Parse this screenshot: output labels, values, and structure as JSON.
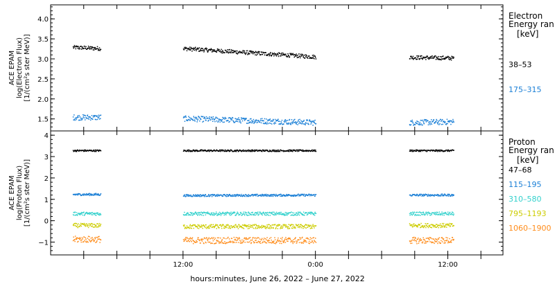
{
  "chart_data": [
    {
      "type": "scatter",
      "panel": "electron",
      "ylabel": [
        "ACE EPAM",
        "log(Electron Flux)",
        "[1/(cm²s ster MeV)]"
      ],
      "ylim": [
        1.2,
        4.35
      ],
      "yticks": [
        1.5,
        2.0,
        2.5,
        3.0,
        3.5,
        4.0
      ],
      "ytick_labels": [
        "1.5",
        "2.0",
        "2.5",
        "3.0",
        "3.5",
        "4.0"
      ],
      "legend_title": [
        "Electron",
        "Energy ran"
      ],
      "legend_unit": "[keV]",
      "series": [
        {
          "name": "38–53",
          "color": "#000000",
          "base": 3.2,
          "segments": [
            [
              2.0,
              4.5,
              3.3,
              3.27
            ],
            [
              12.0,
              24.0,
              3.27,
              3.06
            ],
            [
              32.5,
              36.5,
              3.05,
              3.03
            ]
          ],
          "noise": 0.05
        },
        {
          "name": "175–315",
          "color": "#1a7fd6",
          "base": 1.5,
          "segments": [
            [
              2.0,
              4.5,
              1.55,
              1.55
            ],
            [
              12.0,
              24.0,
              1.52,
              1.42
            ],
            [
              32.5,
              36.5,
              1.42,
              1.44
            ]
          ],
          "noise": 0.07
        }
      ]
    },
    {
      "type": "scatter",
      "panel": "proton",
      "ylabel": [
        "ACE EPAM",
        "log(Proton Flux)",
        "[1/(cm²s ster MeV)]"
      ],
      "ylim": [
        -1.6,
        4.2
      ],
      "yticks": [
        -1,
        0,
        1,
        2,
        3,
        4
      ],
      "ytick_labels": [
        "−1",
        "0",
        "1",
        "2",
        "3",
        "4"
      ],
      "legend_title": [
        "Proton",
        "Energy ran"
      ],
      "legend_unit": "[keV]",
      "series": [
        {
          "name": "47–68",
          "color": "#000000",
          "segments": [
            [
              2.0,
              4.5,
              3.3,
              3.3
            ],
            [
              12.0,
              24.0,
              3.3,
              3.3
            ],
            [
              32.5,
              36.5,
              3.3,
              3.3
            ]
          ],
          "noise": 0.04
        },
        {
          "name": "115–195",
          "color": "#1a7fd6",
          "segments": [
            [
              2.0,
              4.5,
              1.25,
              1.25
            ],
            [
              12.0,
              24.0,
              1.2,
              1.22
            ],
            [
              32.5,
              36.5,
              1.22,
              1.22
            ]
          ],
          "noise": 0.05
        },
        {
          "name": "310–580",
          "color": "#33d1cc",
          "segments": [
            [
              2.0,
              4.5,
              0.35,
              0.35
            ],
            [
              12.0,
              24.0,
              0.35,
              0.35
            ],
            [
              32.5,
              36.5,
              0.35,
              0.35
            ]
          ],
          "noise": 0.08
        },
        {
          "name": "795–1193",
          "color": "#cccc00",
          "segments": [
            [
              2.0,
              4.5,
              -0.2,
              -0.2
            ],
            [
              12.0,
              24.0,
              -0.25,
              -0.25
            ],
            [
              32.5,
              36.5,
              -0.2,
              -0.2
            ]
          ],
          "noise": 0.1
        },
        {
          "name": "1060–1900",
          "color": "#ff8c1a",
          "segments": [
            [
              2.0,
              4.5,
              -0.85,
              -0.85
            ],
            [
              12.0,
              24.0,
              -0.9,
              -0.9
            ],
            [
              32.5,
              36.5,
              -0.9,
              -0.9
            ]
          ],
          "noise": 0.15
        }
      ]
    }
  ],
  "x_axis": {
    "xlim": [
      0,
      41
    ],
    "ticks": [
      3,
      6,
      9,
      12,
      15,
      18,
      21,
      24,
      27,
      30,
      33,
      36,
      39
    ],
    "labeled": [
      12,
      24,
      36
    ],
    "labels": [
      "12:00",
      "0:00",
      "12:00"
    ],
    "xlabel": "hours:minutes, June 26, 2022 – June 27, 2022"
  }
}
